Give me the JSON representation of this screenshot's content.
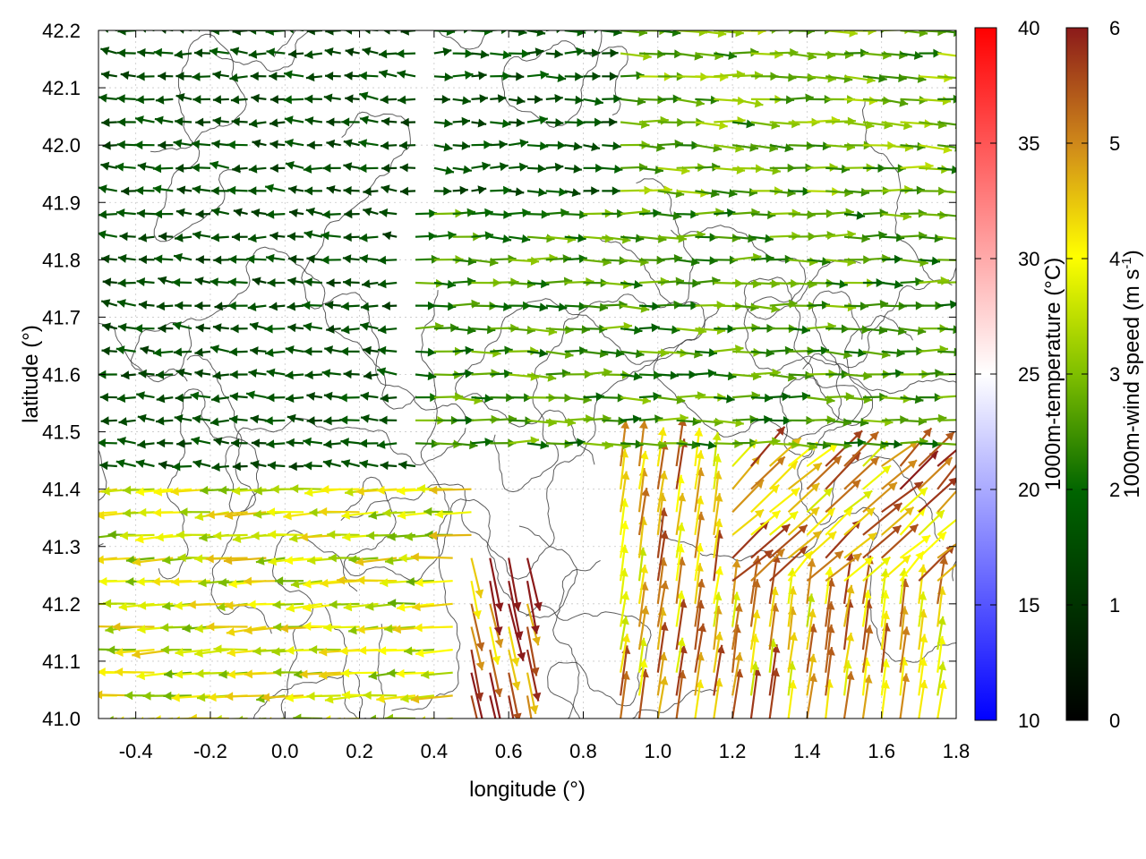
{
  "chart_data": {
    "type": "vector-field",
    "xlabel": "longitude (°)",
    "ylabel": "latitude (°)",
    "xlim": [
      -0.5,
      1.8
    ],
    "ylim": [
      41.0,
      42.2
    ],
    "xticks": [
      "-0.4",
      "-0.2",
      "0.0",
      "0.2",
      "0.4",
      "0.6",
      "0.8",
      "1.0",
      "1.2",
      "1.4",
      "1.6",
      "1.8"
    ],
    "yticks": [
      "41.0",
      "41.1",
      "41.2",
      "41.3",
      "41.4",
      "41.5",
      "41.6",
      "41.7",
      "41.8",
      "41.9",
      "42.0",
      "42.1",
      "42.2"
    ],
    "grid": true,
    "colorbars": [
      {
        "label": "1000m-temperature (°C)",
        "range": [
          10,
          40
        ],
        "ticks": [
          "10",
          "15",
          "20",
          "25",
          "30",
          "35",
          "40"
        ],
        "colors": [
          "#0000ff",
          "#ffffff",
          "#ff0000"
        ]
      },
      {
        "label": "1000m-wind speed (m s-1)",
        "label_main": "1000m-wind speed (m s",
        "label_sup": "-1",
        "label_end": ")",
        "range": [
          0,
          6
        ],
        "ticks": [
          "0",
          "1",
          "2",
          "3",
          "4",
          "5",
          "6"
        ],
        "colors": [
          "#000000",
          "#006400",
          "#7fbf00",
          "#ffff00",
          "#d08a1a",
          "#8b1a1a"
        ]
      }
    ],
    "wind_regimes": [
      {
        "lon": [
          -0.5,
          0.35
        ],
        "lat": [
          41.4,
          42.2
        ],
        "u": -1.6,
        "v": 0.1,
        "speed": 1.5
      },
      {
        "lon": [
          0.35,
          0.9
        ],
        "lat": [
          41.7,
          42.2
        ],
        "u": 1.5,
        "v": 0.0,
        "speed": 1.6
      },
      {
        "lon": [
          0.9,
          1.8
        ],
        "lat": [
          41.9,
          42.2
        ],
        "u": 2.6,
        "v": -0.1,
        "speed": 2.8
      },
      {
        "lon": [
          0.3,
          1.8
        ],
        "lat": [
          41.45,
          41.9
        ],
        "u": 2.5,
        "v": -0.05,
        "speed": 2.5
      },
      {
        "lon": [
          -0.5,
          0.5
        ],
        "lat": [
          41.0,
          41.4
        ],
        "u": -3.6,
        "v": -0.2,
        "speed": 3.7
      },
      {
        "lon": [
          0.45,
          0.7
        ],
        "lat": [
          41.0,
          41.3
        ],
        "u": 0.8,
        "v": -3.8,
        "speed": 5.5
      },
      {
        "lon": [
          0.9,
          1.8
        ],
        "lat": [
          41.0,
          41.45
        ],
        "u": 0.5,
        "v": 3.6,
        "speed": 4.6
      },
      {
        "lon": [
          1.2,
          1.8
        ],
        "lat": [
          41.2,
          41.45
        ],
        "u": 2.8,
        "v": 2.6,
        "speed": 4.8
      }
    ]
  }
}
